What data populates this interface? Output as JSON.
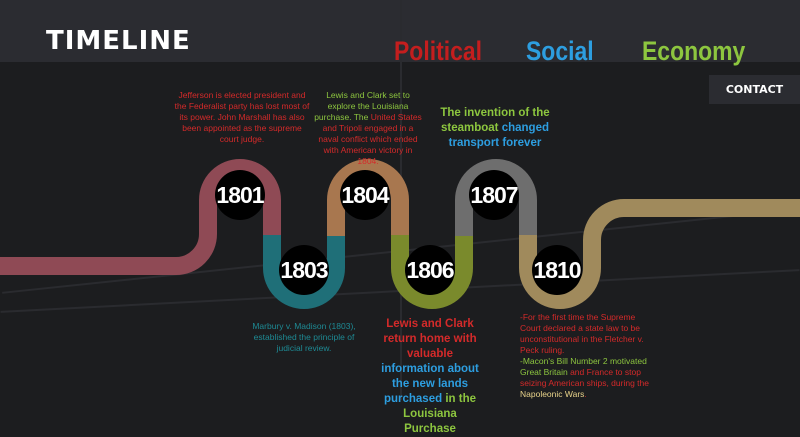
{
  "header": {
    "logo": "TIMELINE",
    "contact_label": "CONTACT"
  },
  "nav": [
    {
      "label": "Political",
      "color": "#c41e1e"
    },
    {
      "label": "Social",
      "color": "#2d9ee0"
    },
    {
      "label": "Economy",
      "color": "#8dc63f"
    }
  ],
  "colors": {
    "political": "#d42a2a",
    "social": "#2d9ee0",
    "economy": "#8dc63f",
    "seg_1801": "#8f4a55",
    "seg_1803": "#1f6f78",
    "seg_1804": "#a8774f",
    "seg_1806": "#7a8a2c",
    "seg_1807": "#6e6e6e",
    "seg_1810": "#a08a5c"
  },
  "years": [
    "1801",
    "1803",
    "1804",
    "1806",
    "1807",
    "1810"
  ],
  "events": {
    "e1801": "Jefferson is elected president  and the Federalist party has lost most of its power. John Marshall has also been appointed as the supreme court judge.",
    "e1803": "Marbury v. Madison (1803), established the principle of judicial review.",
    "e1804a": "Lewis and Clark set to explore the Louisiana purchase. The",
    "e1804b": "United States and Tripoli engaged in a naval conflict which ended with American victory in 1804.",
    "e1806a": "Lewis and Clark return home with valuable",
    "e1806b": "information about the new lands purchased",
    "e1806c": "in the Louisiana Purchase",
    "e1807a": "The invention of the steamboat",
    "e1807b": "changed transport forever",
    "e1810a": "-For the first time the Supreme Court declared a state law to be unconstitutional in the Fletcher v. Peck ruling.",
    "e1810b": " -Macon's Bill Number 2 motivated",
    "e1810c": "Great Britain",
    "e1810d": " and France to stop seizing American ships, during the ",
    "e1810e": "Napoleonic Wars",
    "e1810f": "."
  }
}
